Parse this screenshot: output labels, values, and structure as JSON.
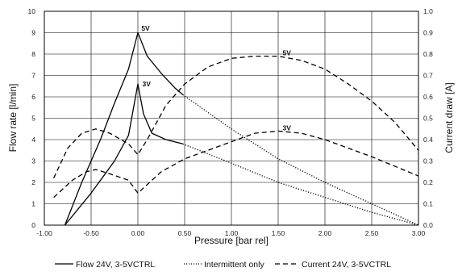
{
  "chart_data": {
    "type": "line",
    "xlabel": "Pressure [bar rel]",
    "ylabel_left": "Flow rate [l/min]",
    "ylabel_right": "Current draw [A]",
    "xlim": [
      -1.0,
      3.0
    ],
    "ylim_left": [
      0,
      10
    ],
    "ylim_right": [
      0.0,
      1.0
    ],
    "x_ticks": [
      "-1.00",
      "-0.50",
      "0.00",
      "0.50",
      "1.00",
      "1.50",
      "2.00",
      "2.50",
      "3.00"
    ],
    "y_left_ticks": [
      "0",
      "1",
      "2",
      "3",
      "4",
      "5",
      "6",
      "7",
      "8",
      "9",
      "10"
    ],
    "y_right_ticks": [
      "0.0",
      "0.1",
      "0.2",
      "0.3",
      "0.4",
      "0.5",
      "0.6",
      "0.7",
      "0.8",
      "0.9",
      "1.0"
    ],
    "grid": true,
    "legend_position": "bottom",
    "legend": [
      {
        "label": "Flow 24V, 3-5VCTRL",
        "style": "solid"
      },
      {
        "label": "Intermittent only",
        "style": "dotted"
      },
      {
        "label": "Current 24V, 3-5VCTRL",
        "style": "dashed"
      }
    ],
    "series": [
      {
        "label": "5V",
        "kind": "flow",
        "style": "solid",
        "axis": "left",
        "points": [
          [
            -0.78,
            0
          ],
          [
            -0.6,
            2
          ],
          [
            -0.4,
            4
          ],
          [
            -0.25,
            5.7
          ],
          [
            -0.1,
            7.3
          ],
          [
            0,
            9
          ],
          [
            0.1,
            7.9
          ],
          [
            0.25,
            7.1
          ],
          [
            0.4,
            6.4
          ],
          [
            0.48,
            6.1
          ]
        ]
      },
      {
        "label": "5V",
        "kind": "flow",
        "style": "dotted",
        "axis": "left",
        "points": [
          [
            0.48,
            6.1
          ],
          [
            1.0,
            4.5
          ],
          [
            1.5,
            3.1
          ],
          [
            2.0,
            2.0
          ],
          [
            2.5,
            1.0
          ],
          [
            3.0,
            0
          ]
        ]
      },
      {
        "label": "3V",
        "kind": "flow",
        "style": "solid",
        "axis": "left",
        "points": [
          [
            -0.78,
            0
          ],
          [
            -0.5,
            1.5
          ],
          [
            -0.25,
            3.0
          ],
          [
            -0.1,
            4.2
          ],
          [
            0,
            6.6
          ],
          [
            0.06,
            5.2
          ],
          [
            0.15,
            4.3
          ],
          [
            0.3,
            4.0
          ],
          [
            0.48,
            3.8
          ]
        ]
      },
      {
        "label": "3V",
        "kind": "flow",
        "style": "dotted",
        "axis": "left",
        "points": [
          [
            0.48,
            3.8
          ],
          [
            1.0,
            2.9
          ],
          [
            1.5,
            2.0
          ],
          [
            2.0,
            1.3
          ],
          [
            2.5,
            0.6
          ],
          [
            3.0,
            0
          ]
        ]
      },
      {
        "label": "5V",
        "kind": "current",
        "style": "dashed",
        "axis": "right",
        "points": [
          [
            -0.9,
            0.22
          ],
          [
            -0.75,
            0.36
          ],
          [
            -0.6,
            0.43
          ],
          [
            -0.45,
            0.45
          ],
          [
            -0.3,
            0.43
          ],
          [
            -0.1,
            0.38
          ],
          [
            0,
            0.33
          ],
          [
            0.1,
            0.4
          ],
          [
            0.3,
            0.56
          ],
          [
            0.5,
            0.66
          ],
          [
            0.75,
            0.74
          ],
          [
            1.0,
            0.78
          ],
          [
            1.25,
            0.79
          ],
          [
            1.5,
            0.79
          ],
          [
            1.75,
            0.77
          ],
          [
            2.0,
            0.73
          ],
          [
            2.25,
            0.66
          ],
          [
            2.5,
            0.58
          ],
          [
            2.75,
            0.48
          ],
          [
            3.0,
            0.35
          ]
        ]
      },
      {
        "label": "3V",
        "kind": "current",
        "style": "dashed",
        "axis": "right",
        "points": [
          [
            -0.9,
            0.13
          ],
          [
            -0.7,
            0.21
          ],
          [
            -0.55,
            0.25
          ],
          [
            -0.45,
            0.26
          ],
          [
            -0.3,
            0.24
          ],
          [
            -0.1,
            0.21
          ],
          [
            0,
            0.15
          ],
          [
            0.25,
            0.25
          ],
          [
            0.5,
            0.31
          ],
          [
            1.0,
            0.39
          ],
          [
            1.25,
            0.43
          ],
          [
            1.5,
            0.44
          ],
          [
            1.75,
            0.43
          ],
          [
            2.0,
            0.4
          ],
          [
            2.5,
            0.32
          ],
          [
            3.0,
            0.23
          ]
        ]
      }
    ],
    "annotations": [
      {
        "text": "5V",
        "x": 0.02,
        "y_left": 9.2
      },
      {
        "text": "3V",
        "x": 0.03,
        "y_left": 6.6
      },
      {
        "text": "5V",
        "x": 1.53,
        "y_left": 8.05
      },
      {
        "text": "3V",
        "x": 1.53,
        "y_left": 4.55
      }
    ]
  }
}
